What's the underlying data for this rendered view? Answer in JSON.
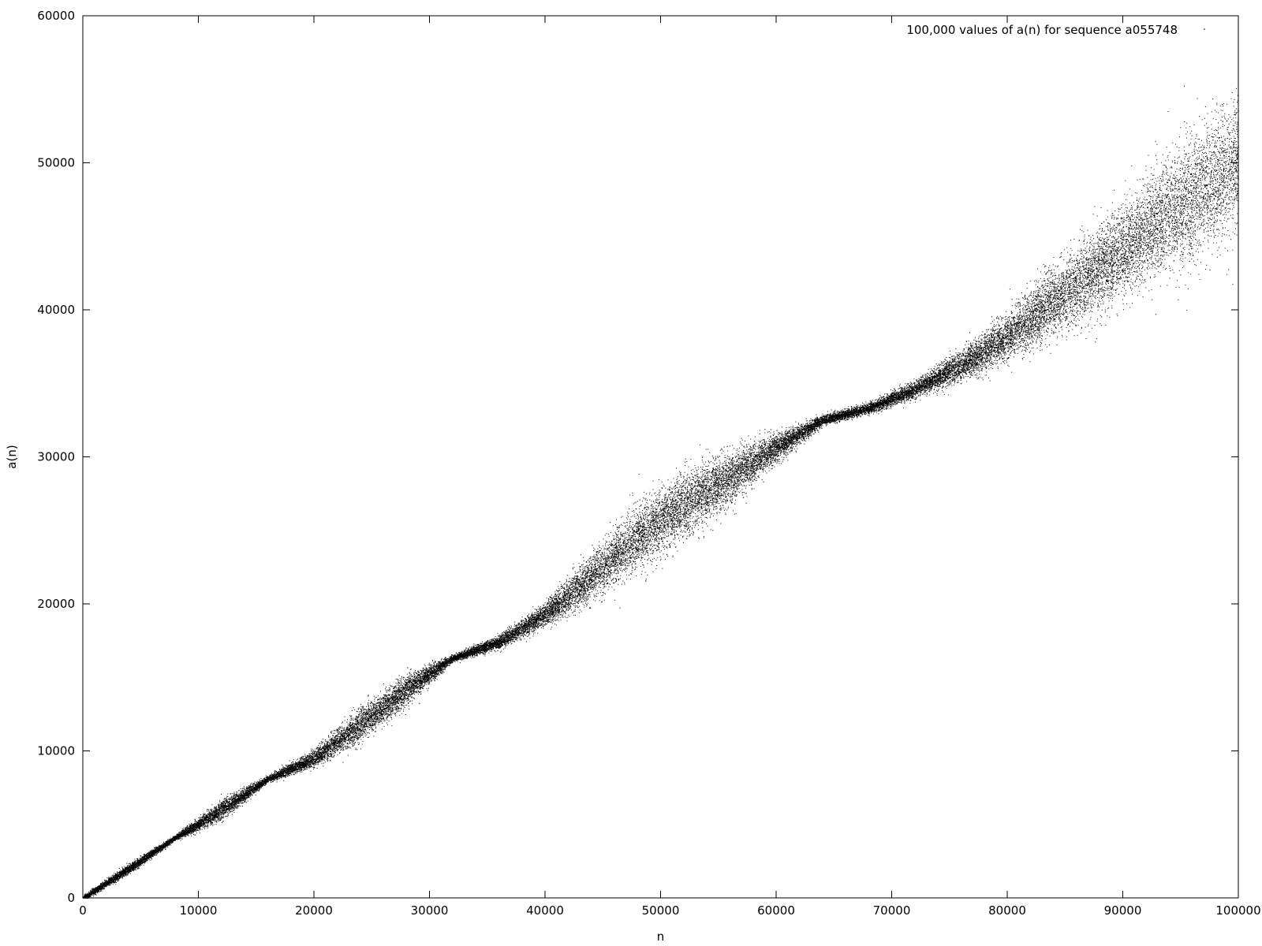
{
  "chart_data": {
    "type": "scatter",
    "title": "",
    "xlabel": "n",
    "ylabel": "a(n)",
    "xlim": [
      0,
      100000
    ],
    "ylim": [
      0,
      60000
    ],
    "x_ticks": [
      0,
      10000,
      20000,
      30000,
      40000,
      50000,
      60000,
      70000,
      80000,
      90000,
      100000
    ],
    "y_ticks": [
      0,
      10000,
      20000,
      30000,
      40000,
      50000,
      60000
    ],
    "x_tick_labels": [
      "0",
      "10000",
      "20000",
      "30000",
      "40000",
      "50000",
      "60000",
      "70000",
      "80000",
      "90000",
      "100000"
    ],
    "y_tick_labels": [
      "0",
      "10000",
      "20000",
      "30000",
      "40000",
      "50000",
      "60000"
    ],
    "grid": false,
    "legend_position": "top-right",
    "point_color": "#000000",
    "series": [
      {
        "name": "100,000 values of a(n) for sequence a055748",
        "marker": "dot",
        "count": 100000,
        "envelope": {
          "x": [
            0,
            4000,
            8000,
            12000,
            16000,
            20000,
            24000,
            28000,
            32000,
            36000,
            40000,
            44000,
            48000,
            52000,
            56000,
            60000,
            64000,
            68000,
            72000,
            76000,
            80000,
            84000,
            88000,
            92000,
            96000,
            100000
          ],
          "center": [
            0,
            2000,
            4100,
            6000,
            8100,
            9500,
            11800,
            14200,
            16300,
            17400,
            19300,
            21800,
            24500,
            26800,
            28600,
            30600,
            32500,
            33300,
            34600,
            36200,
            38200,
            40600,
            42800,
            45300,
            47600,
            50000
          ],
          "half_width": [
            150,
            300,
            150,
            600,
            200,
            500,
            1000,
            900,
            200,
            400,
            700,
            1400,
            1900,
            1900,
            1600,
            800,
            300,
            300,
            500,
            900,
            1400,
            2000,
            2600,
            3000,
            3600,
            4200
          ]
        }
      }
    ]
  }
}
